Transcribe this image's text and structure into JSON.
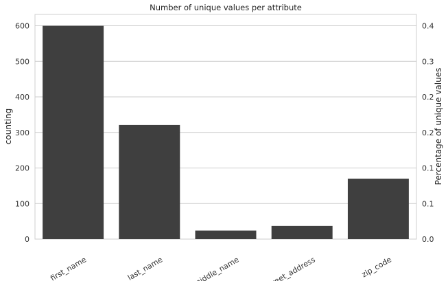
{
  "chart_data": {
    "type": "bar",
    "title": "Number of unique values per attribute",
    "categories": [
      "first_name",
      "last_name",
      "middle_name",
      "street_address",
      "zip_code"
    ],
    "values": [
      600,
      321,
      24,
      37,
      170
    ],
    "ylabel": "counting",
    "ylabel_right": "Percentage of unique values",
    "ylim": [
      0,
      632
    ],
    "yticks": [
      "0",
      "100",
      "200",
      "300",
      "400",
      "500",
      "600"
    ],
    "yticks_right": [
      "0.0",
      "0.1",
      "0.1",
      "0.2",
      "0.2",
      "0.3",
      "0.4"
    ],
    "grid": true,
    "legend": "none",
    "colors": {
      "bar": "#3f3f3f",
      "grid": "#cccccc",
      "frame": "#cfcfcf",
      "background": "#ffffff"
    }
  }
}
